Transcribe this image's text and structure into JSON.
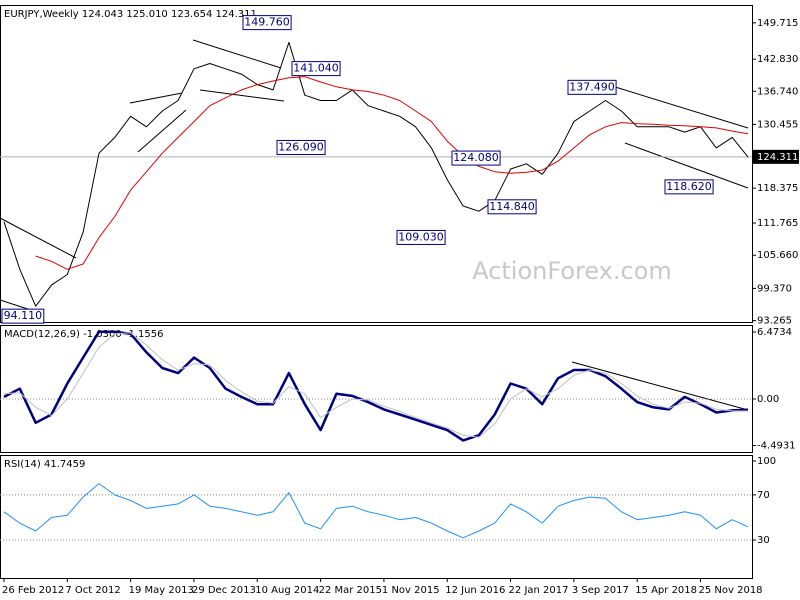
{
  "chart_data": [
    {
      "type": "line",
      "title": "EURJPY,Weekly  124.043 125.010 123.654 124.311",
      "ylim": [
        93.0,
        153.1
      ],
      "yticks": [
        149.715,
        {
          "value": 142.83,
          "label": "142.830"
        },
        {
          "value": 136.74,
          "label": "136.740"
        },
        130.455,
        118.375,
        111.765,
        {
          "value": 105.66,
          "label": "105.660"
        },
        {
          "value": 99.37,
          "label": "99.370"
        },
        93.265
      ],
      "grid": false,
      "last_price": 124.311,
      "series": [
        {
          "color": "#000000",
          "values": [
            112,
            103,
            96,
            100,
            102,
            110,
            125,
            128,
            132,
            130,
            133,
            135,
            141,
            142,
            141,
            140,
            138,
            137,
            146,
            136,
            135,
            135,
            137,
            134,
            133,
            132,
            130,
            126,
            120,
            115,
            114,
            116,
            122,
            123,
            121,
            125,
            131,
            133,
            135,
            133,
            130,
            130,
            130,
            129,
            130,
            126,
            128,
            124.3
          ]
        },
        {
          "color": "#e00000",
          "values": [
            null,
            null,
            105.5,
            104.5,
            103,
            104,
            109,
            113,
            118,
            121.5,
            125,
            128,
            131,
            134,
            135.5,
            137,
            138,
            138.7,
            139.3,
            139.5,
            138.5,
            137.6,
            137,
            136.7,
            136,
            135,
            133,
            131,
            127.3,
            124.5,
            122.5,
            121.5,
            121.2,
            121.4,
            121.8,
            123.5,
            126,
            128.5,
            130,
            130.8,
            130.6,
            130.5,
            130.3,
            130.2,
            130,
            129.8,
            129.2,
            128.7
          ]
        }
      ],
      "annotations": [
        {
          "label": "149.760",
          "value": 149.76
        },
        {
          "label": "141.040",
          "value": 141.04
        },
        {
          "label": "126.090",
          "value": 126.09
        },
        {
          "label": "137.490",
          "value": 137.49
        },
        {
          "label": "124.080",
          "value": 124.08
        },
        {
          "label": "114.840",
          "value": 114.84
        },
        {
          "label": "109.030",
          "value": 109.03
        },
        {
          "label": "118.620",
          "value": 118.62
        },
        {
          "label": "94.110",
          "value": 94.11
        }
      ],
      "watermark": "ActionForex.com"
    },
    {
      "type": "line",
      "title": "MACD(12,26,9) -1.0300 -1.1556",
      "ylim": [
        -5.12,
        7.15
      ],
      "yticks": [
        6.4734,
        {
          "value": 0,
          "label": "0.00"
        },
        -4.4931
      ],
      "grid": true,
      "series": [
        {
          "color": "#000080",
          "width": 2.5,
          "values": [
            0.2,
            1.0,
            -2.3,
            -1.5,
            1.5,
            4.0,
            6.5,
            6.5,
            6.3,
            4.5,
            3.0,
            2.5,
            4.0,
            3.0,
            1.0,
            0.2,
            -0.5,
            -0.5,
            2.5,
            -0.5,
            -3.0,
            0.5,
            0.3,
            -0.3,
            -1.0,
            -1.5,
            -2.0,
            -2.5,
            -3.0,
            -4.0,
            -3.5,
            -1.5,
            1.5,
            1.0,
            -0.5,
            2.0,
            2.8,
            2.8,
            2.2,
            1.0,
            -0.3,
            -0.8,
            -1.0,
            0.2,
            -0.5,
            -1.3,
            -1.1,
            -1.03
          ]
        },
        {
          "color": "#c0c0c0",
          "width": 1,
          "values": [
            0.5,
            0.6,
            -0.8,
            -1.6,
            0,
            2.5,
            5,
            6.3,
            6.4,
            5.2,
            3.8,
            2.8,
            3.4,
            3.3,
            1.8,
            0.7,
            -0.2,
            -0.4,
            1.2,
            0.5,
            -1.8,
            -0.8,
            0,
            -0.1,
            -0.7,
            -1.2,
            -1.8,
            -2.3,
            -2.8,
            -3.5,
            -3.7,
            -2.4,
            0,
            1.0,
            0.2,
            1.0,
            2.3,
            2.8,
            2.5,
            1.5,
            0.3,
            -0.5,
            -0.9,
            -0.3,
            -0.4,
            -1.0,
            -1.15,
            -1.16
          ]
        }
      ]
    },
    {
      "type": "line",
      "title": "RSI(14) 41.7459",
      "ylim": [
        -3.6,
        105.3
      ],
      "yticks": [
        100,
        70,
        30
      ],
      "grid": true,
      "series": [
        {
          "color": "#1e90ff",
          "width": 1,
          "values": [
            55,
            45,
            38,
            50,
            52,
            68,
            80,
            70,
            65,
            58,
            60,
            62,
            70,
            60,
            58,
            55,
            52,
            55,
            72,
            45,
            40,
            58,
            60,
            55,
            52,
            48,
            50,
            45,
            38,
            32,
            38,
            45,
            62,
            55,
            45,
            60,
            65,
            68,
            67,
            55,
            48,
            50,
            52,
            55,
            52,
            40,
            48,
            41.7
          ]
        }
      ],
      "categories": [
        "26 Feb 2012",
        null,
        null,
        null,
        "7 Oct 2012",
        null,
        null,
        null,
        "19 May 2013",
        null,
        null,
        null,
        "29 Dec 2013",
        null,
        null,
        null,
        "10 Aug 2014",
        null,
        null,
        null,
        "22 Mar 2015",
        null,
        null,
        null,
        "1 Nov 2015",
        null,
        null,
        null,
        "12 Jun 2016",
        null,
        null,
        null,
        "22 Jan 2017",
        null,
        null,
        null,
        "3 Sep 2017",
        null,
        null,
        null,
        "15 Apr 2018",
        null,
        null,
        null,
        "25 Nov 2018",
        null,
        null,
        null
      ]
    }
  ]
}
